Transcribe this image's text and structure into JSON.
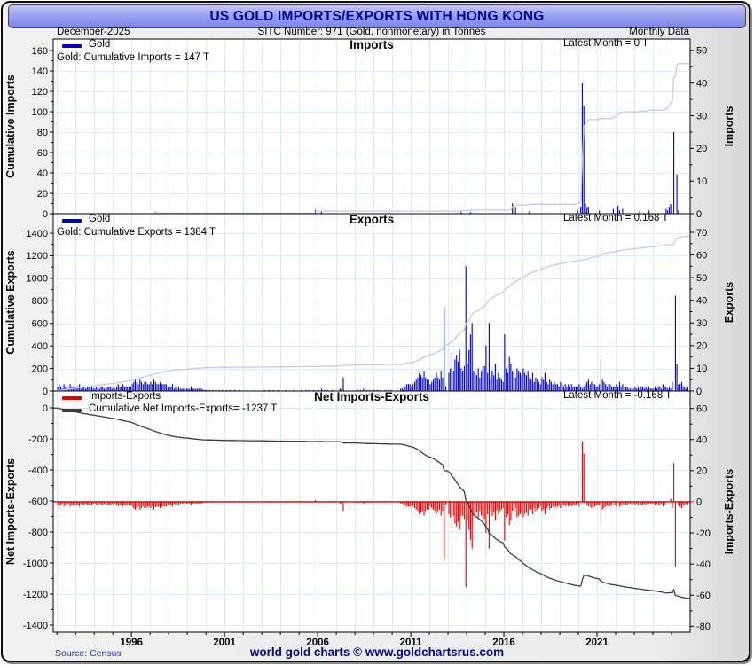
{
  "header": {
    "title": "US GOLD IMPORTS/EXPORTS WITH HONG KONG"
  },
  "subheader": {
    "date": "December-2025",
    "sitc": "SITC Number: 971 (Gold, nonmonetary) in Tonnes",
    "frequency": "Monthly Data"
  },
  "footer": {
    "source": "Source: Census",
    "copyright": "world gold charts © www.goldchartsrus.com"
  },
  "colors": {
    "bar_blue": "#0000c8",
    "cum_light": "#c6c8ef",
    "bar_red": "#e60000",
    "cum_dark": "#3c3c3c",
    "grid": "#dfeaf8",
    "title_navy": "#000099",
    "link_blue": "#2233cc",
    "axis_black": "#000000"
  },
  "chart_data": {
    "type": "bar",
    "subtype": "three stacked panels: monthly bars + cumulative line",
    "frequency": "monthly",
    "start_year": 1992,
    "end_year": 2025,
    "x_axis": {
      "min": 1991.8,
      "max": 2026.0,
      "unit": "year",
      "tick_years": [
        1996,
        2001,
        2006,
        2011,
        2016,
        2021
      ],
      "minor_tick_step": 1
    },
    "summary": {
      "cumulative_imports_t": 147,
      "cumulative_exports_t": 1384,
      "cumulative_net_t": -1237,
      "latest_month_imports_t": 0,
      "latest_month_exports_t": 0.168,
      "latest_month_net_t": -0.168
    },
    "panels": [
      {
        "id": "imports",
        "title": "Imports",
        "legend": [
          {
            "label": "Gold",
            "color_key": "bar_blue"
          }
        ],
        "annotation": "Gold: Cumulative Imports = 147 T",
        "latest": "Latest Month = 0 T",
        "left_axis": {
          "label": "Cumulative Imports",
          "range": [
            0,
            171.3
          ],
          "ticks": [
            0,
            20,
            40,
            60,
            80,
            100,
            120,
            140,
            160
          ]
        },
        "right_axis": {
          "label": "Imports",
          "range": [
            0,
            53.5
          ],
          "ticks": [
            0,
            10,
            20,
            30,
            40,
            50
          ]
        },
        "bars": "imp",
        "bar_color": "bar_blue",
        "line": "ci",
        "line_color": "cum_light"
      },
      {
        "id": "exports",
        "title": "Exports",
        "legend": [
          {
            "label": "Gold",
            "color_key": "bar_blue"
          }
        ],
        "annotation": "Gold: Cumulative Exports = 1384 T",
        "latest": "Latest Month = 0.168 T",
        "left_axis": {
          "label": "Cumulative Exports",
          "range": [
            0,
            1573
          ],
          "ticks": [
            0,
            200,
            400,
            600,
            800,
            1000,
            1200,
            1400
          ]
        },
        "right_axis": {
          "label": "Exports",
          "range": [
            0,
            78.2
          ],
          "ticks": [
            0,
            10,
            20,
            30,
            40,
            50,
            60,
            70
          ]
        },
        "bars": "exp",
        "bar_color": "bar_blue",
        "line": "ce",
        "line_color": "cum_light"
      },
      {
        "id": "net",
        "title": "Net Imports-Exports",
        "legend": [
          {
            "label": "Imports-Exports",
            "color_key": "bar_red"
          },
          {
            "label": "Cumulative Net Imports-Exports= -1237 T",
            "color_key": "cum_dark"
          }
        ],
        "latest": "Latest Month = -0.168 T",
        "zero_line": 0,
        "left_axis": {
          "label": "Net Imports-Exports",
          "range": [
            -1445.7,
            108.6
          ],
          "ticks": [
            0,
            -200,
            -400,
            -600,
            -800,
            -1000,
            -1200,
            -1400
          ]
        },
        "right_axis": {
          "label": "Imports-Exports",
          "range": [
            -83.8,
            71.2
          ],
          "ticks": [
            60,
            40,
            20,
            0,
            -20,
            -40,
            -60,
            -80
          ]
        },
        "bars": "net",
        "bar_color": "bar_red",
        "line": "cn",
        "line_color": "cum_dark"
      }
    ],
    "monthly_imports_tonnes": {
      "1997": [
        0,
        0,
        0,
        0.5,
        0,
        0,
        0,
        0,
        0,
        0,
        0,
        0
      ],
      "2005": [
        0,
        0,
        0,
        0,
        0,
        0,
        0,
        0,
        0,
        0,
        1.2,
        0
      ],
      "2006": [
        0,
        0,
        0.8,
        0,
        0,
        0,
        0,
        0,
        0,
        0,
        0,
        0
      ],
      "2013": [
        0,
        0,
        0,
        0,
        0,
        0,
        0,
        0,
        0.6,
        0,
        0,
        0
      ],
      "2014": [
        0,
        0,
        0.5,
        0,
        0,
        0,
        0,
        0,
        0,
        0,
        0,
        0
      ],
      "2016": [
        0,
        0,
        0,
        0,
        0,
        3.2,
        0,
        1.8,
        0,
        0,
        0,
        0
      ],
      "2017": [
        0,
        0,
        0,
        0,
        0.7,
        0,
        0,
        0,
        0,
        0,
        0,
        0
      ],
      "2019": [
        0,
        0,
        0,
        0,
        0,
        0,
        0,
        0,
        0,
        0,
        0,
        1
      ],
      "2020": [
        0,
        2,
        40,
        33,
        3.2,
        1.8,
        2,
        0,
        0,
        0,
        0,
        0
      ],
      "2021": [
        0,
        1,
        0,
        0,
        0,
        0,
        0,
        0,
        0,
        0,
        1.5,
        0
      ],
      "2022": [
        0,
        2.5,
        1,
        0,
        1.5,
        0,
        0,
        0,
        0,
        0,
        0,
        0
      ],
      "2023": [
        0,
        0,
        0,
        0.8,
        0,
        0,
        0,
        0,
        0,
        1,
        0,
        0
      ],
      "2024": [
        0,
        0,
        0,
        0,
        0,
        0,
        0,
        0,
        1.5,
        1,
        2,
        3
      ],
      "2025": [
        0,
        25,
        0,
        12,
        1,
        0,
        0,
        0,
        0,
        0,
        0,
        0
      ]
    },
    "monthly_exports_tonnes": {
      "1992": [
        2,
        3,
        2,
        1,
        3,
        2,
        2,
        1,
        3,
        2,
        2,
        2
      ],
      "1993": [
        2,
        2,
        3,
        1,
        2,
        2,
        1,
        2,
        2,
        2,
        2,
        1
      ],
      "1994": [
        1,
        2,
        2,
        1,
        2,
        2,
        1,
        2,
        2,
        2,
        2,
        1
      ],
      "1995": [
        2,
        1,
        2,
        3,
        2,
        2,
        3,
        2,
        2,
        2,
        2,
        2
      ],
      "1996": [
        3,
        4,
        5,
        4,
        3,
        5,
        4,
        3,
        4,
        4,
        3,
        3
      ],
      "1997": [
        4,
        3,
        5,
        4,
        3,
        3,
        4,
        3,
        3,
        3,
        3,
        2
      ],
      "1998": [
        2,
        2,
        3,
        1,
        2,
        1,
        2,
        1,
        1,
        1,
        1,
        1
      ],
      "1999": [
        1,
        1,
        2,
        1,
        1,
        1,
        1,
        1,
        1,
        1,
        0.5,
        0.5
      ],
      "2000": [
        0.5,
        0,
        0.5,
        0,
        0.5,
        0,
        0.5,
        0,
        0.5,
        0,
        0.5,
        0
      ],
      "2001": [
        0,
        0.5,
        0,
        0.5,
        0,
        0,
        0.5,
        0,
        0,
        0.5,
        0,
        0
      ],
      "2002": [
        0,
        0,
        0.5,
        0,
        0,
        0,
        0,
        0.5,
        0,
        0,
        0,
        0
      ],
      "2003": [
        0,
        0.5,
        0,
        0,
        0.5,
        0,
        0,
        0.5,
        0,
        0,
        0.5,
        0
      ],
      "2004": [
        0,
        0,
        0,
        0.5,
        0,
        0,
        0,
        0,
        0.5,
        0,
        0,
        0
      ],
      "2005": [
        0,
        0.5,
        0,
        0,
        0.5,
        0,
        0.5,
        0,
        0,
        0.5,
        0,
        0
      ],
      "2006": [
        0.5,
        0,
        1,
        0,
        0.5,
        0,
        0.5,
        0,
        0,
        0.5,
        0,
        0
      ],
      "2007": [
        0,
        0,
        1,
        1,
        6,
        0,
        0,
        0,
        0,
        0,
        0,
        0
      ],
      "2008": [
        0,
        1,
        0,
        0.5,
        0,
        1,
        0,
        0.5,
        0,
        0.5,
        0,
        0.5
      ],
      "2009": [
        0.5,
        0,
        0.5,
        0,
        0.5,
        0,
        0,
        0.5,
        0,
        0.5,
        0,
        0.5
      ],
      "2010": [
        0,
        0,
        0,
        0,
        0,
        1,
        1,
        2,
        2,
        3,
        3,
        3
      ],
      "2011": [
        2,
        3,
        4,
        5,
        6,
        8,
        7,
        6,
        9,
        6,
        5,
        5
      ],
      "2012": [
        3,
        4,
        5,
        6,
        8,
        6,
        5,
        9,
        6,
        37,
        2,
        0
      ],
      "2013": [
        8,
        10,
        17,
        9,
        14,
        16,
        13,
        18,
        10,
        9,
        11,
        55
      ],
      "2014": [
        12,
        18,
        25,
        30,
        9,
        8,
        7,
        10,
        6,
        9,
        11,
        11
      ],
      "2015": [
        20,
        8,
        30,
        6,
        9,
        7,
        12,
        5,
        8,
        6,
        5,
        4
      ],
      "2016": [
        25,
        10,
        8,
        15,
        12,
        9,
        8,
        6,
        10,
        9,
        8,
        7
      ],
      "2017": [
        10,
        8,
        7,
        9,
        6,
        5,
        8,
        4,
        6,
        5,
        4,
        3
      ],
      "2018": [
        6,
        5,
        8,
        4,
        3,
        5,
        4,
        3,
        4,
        3,
        3,
        2
      ],
      "2019": [
        4,
        3,
        2,
        3,
        2,
        3,
        2,
        3,
        2,
        2,
        2,
        2
      ],
      "2020": [
        3,
        2,
        1,
        2,
        3,
        4,
        5,
        3,
        4,
        3,
        3,
        2
      ],
      "2021": [
        2,
        3,
        14,
        5,
        4,
        3,
        2,
        3,
        3,
        2,
        2,
        2
      ],
      "2022": [
        3,
        2,
        4,
        2,
        3,
        2,
        2,
        2,
        1,
        1,
        2,
        1
      ],
      "2023": [
        2,
        1,
        2,
        1,
        2,
        2,
        1,
        2,
        1,
        2,
        1,
        1
      ],
      "2024": [
        1,
        2,
        1,
        2,
        2,
        1,
        3,
        2,
        2,
        1,
        2,
        1
      ],
      "2025": [
        4,
        0,
        42,
        12,
        3,
        3,
        4,
        2,
        2,
        1,
        1.832,
        0.168
      ]
    }
  }
}
